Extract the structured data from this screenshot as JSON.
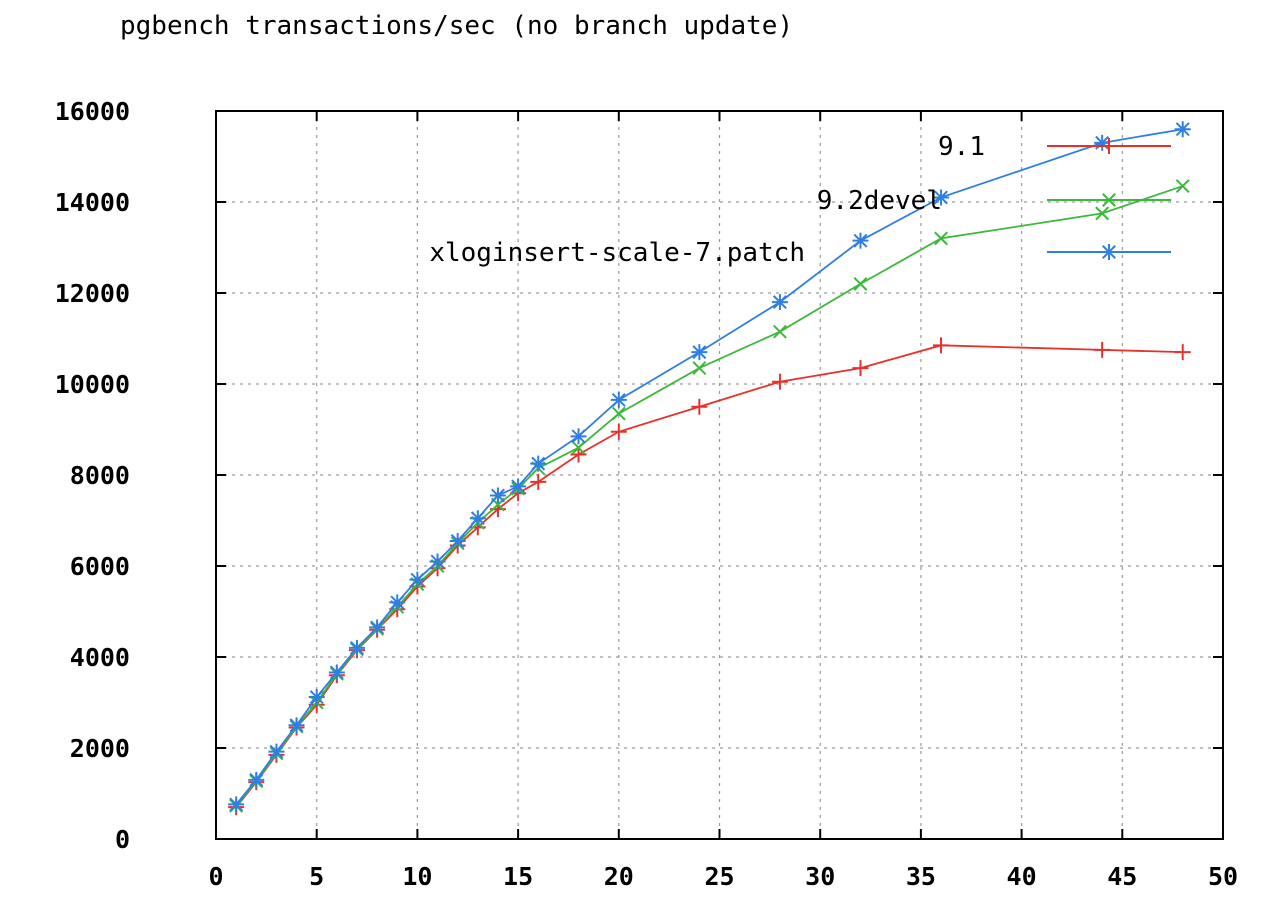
{
  "chart_data": {
    "type": "line",
    "title": "pgbench transactions/sec (no branch update)",
    "xlabel": "",
    "ylabel": "",
    "xlim": [
      0,
      50
    ],
    "ylim": [
      0,
      16000
    ],
    "x_ticks": [
      "0",
      "5",
      "10",
      "15",
      "20",
      "25",
      "30",
      "35",
      "40",
      "45",
      "50"
    ],
    "y_ticks": [
      "0",
      "2000",
      "4000",
      "6000",
      "8000",
      "10000",
      "12000",
      "14000",
      "16000"
    ],
    "grid": true,
    "legend_position": "top-right",
    "series": [
      {
        "name": "9.1",
        "color": "#e8302b",
        "marker": "plus",
        "x": [
          1,
          2,
          3,
          4,
          5,
          6,
          7,
          8,
          9,
          10,
          11,
          12,
          13,
          14,
          15,
          16,
          18,
          20,
          24,
          28,
          32,
          36,
          44,
          48
        ],
        "y": [
          700,
          1250,
          1850,
          2450,
          2950,
          3600,
          4150,
          4600,
          5050,
          5550,
          5950,
          6450,
          6850,
          7250,
          7600,
          7850,
          8450,
          8950,
          9500,
          10050,
          10350,
          10850,
          10750,
          10700
        ]
      },
      {
        "name": "9.2devel",
        "color": "#3cb83c",
        "marker": "cross",
        "x": [
          1,
          2,
          3,
          4,
          5,
          6,
          7,
          8,
          9,
          10,
          11,
          12,
          13,
          14,
          15,
          16,
          18,
          20,
          24,
          28,
          32,
          36,
          44,
          48
        ],
        "y": [
          730,
          1270,
          1880,
          2470,
          3000,
          3630,
          4170,
          4620,
          5100,
          5600,
          6000,
          6500,
          6950,
          7350,
          7700,
          8150,
          8600,
          9350,
          10350,
          11150,
          12200,
          13200,
          13750,
          14350
        ]
      },
      {
        "name": "xloginsert-scale-7.patch",
        "color": "#2f7fe3",
        "marker": "star",
        "x": [
          1,
          2,
          3,
          4,
          5,
          6,
          7,
          8,
          9,
          10,
          11,
          12,
          13,
          14,
          15,
          16,
          18,
          20,
          24,
          28,
          32,
          36,
          44,
          48
        ],
        "y": [
          760,
          1300,
          1920,
          2500,
          3120,
          3660,
          4200,
          4650,
          5200,
          5700,
          6100,
          6550,
          7050,
          7550,
          7750,
          8250,
          8850,
          9650,
          10700,
          11800,
          13150,
          14100,
          15300,
          15600
        ]
      }
    ]
  }
}
